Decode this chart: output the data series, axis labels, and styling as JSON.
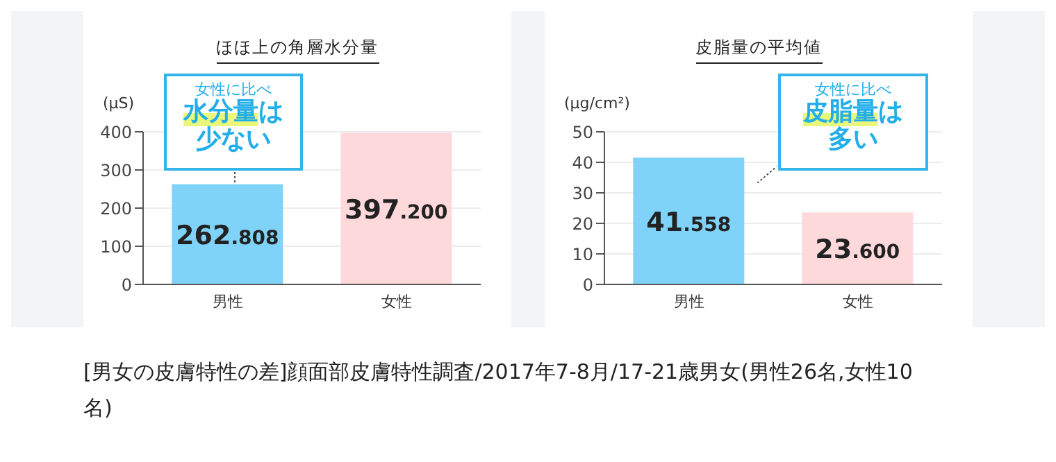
{
  "chart_data": [
    {
      "type": "bar",
      "title": "ほほ上の角層水分量",
      "ylabel": "(μS)",
      "categories": [
        "男性",
        "女性"
      ],
      "values": [
        262.808,
        397.2
      ],
      "colors": [
        "#7fd3f8",
        "#fed9dc"
      ],
      "value_labels": [
        "262.808",
        "397.200"
      ],
      "ylim": [
        0,
        400
      ],
      "yticks": [
        0,
        100,
        200,
        300,
        400
      ],
      "grid": "y",
      "annotations": [
        "女性に比べ",
        "水分量は",
        "少ない",
        "[男女の皮膚特性の差]顔面部皮膚特性調査/2017年7-8月/17-21歳男女(男性26名,女性10名)"
      ]
    },
    {
      "type": "bar",
      "title": "皮脂量の平均値",
      "ylabel": "(μg/cm²)",
      "categories": [
        "男性",
        "女性"
      ],
      "values": [
        41.558,
        23.6
      ],
      "colors": [
        "#7fd3f8",
        "#fed9dc"
      ],
      "value_labels": [
        "41.558",
        "23.600"
      ],
      "ylim": [
        0,
        50
      ],
      "yticks": [
        0,
        10,
        20,
        30,
        40,
        50
      ],
      "grid": "y",
      "annotations": [
        "女性に比べ",
        "皮脂量は",
        "多い"
      ]
    }
  ]
}
